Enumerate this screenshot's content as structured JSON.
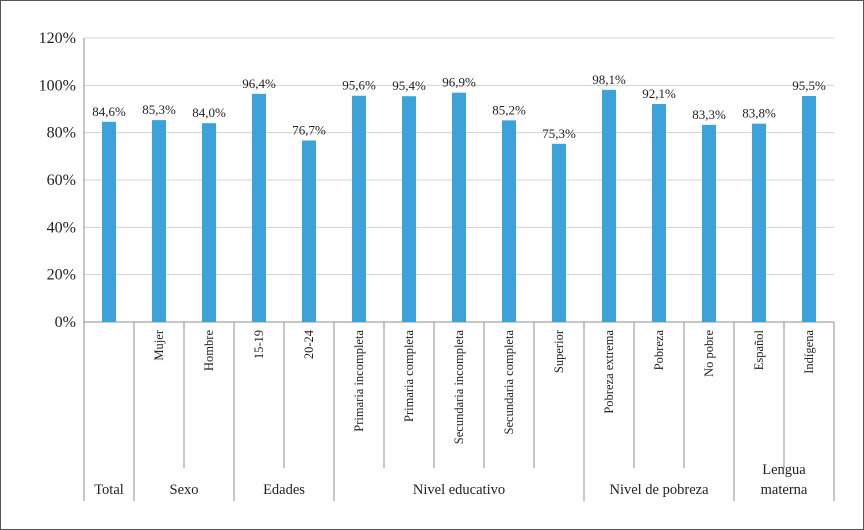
{
  "chart_data": {
    "type": "bar",
    "title": "",
    "xlabel": "",
    "ylabel": "",
    "ylim": [
      0,
      120
    ],
    "yticks": [
      "0%",
      "20%",
      "40%",
      "60%",
      "80%",
      "100%",
      "120%"
    ],
    "grid": true,
    "legend": "none",
    "bar_color": "#3EA2DA",
    "categories": [
      "",
      "Mujer",
      "Hombre",
      "15-19",
      "20-24",
      "Primaria incompleta",
      "Primaria completa",
      "Secundaria incompleta",
      "Secundaria completa",
      "Superior",
      "Pobreza extrema",
      "Pobreza",
      "No pobre",
      "Español",
      "Indígena"
    ],
    "values": [
      84.6,
      85.3,
      84.0,
      96.4,
      76.7,
      95.6,
      95.4,
      96.9,
      85.2,
      75.3,
      98.1,
      92.1,
      83.3,
      83.8,
      95.5
    ],
    "data_labels": [
      "84,6%",
      "85,3%",
      "84,0%",
      "96,4%",
      "76,7%",
      "95,6%",
      "95,4%",
      "96,9%",
      "85,2%",
      "75,3%",
      "98,1%",
      "92,1%",
      "83,3%",
      "83,8%",
      "95,5%"
    ],
    "groups": [
      {
        "label": [
          "Total"
        ],
        "start": 0,
        "count": 1
      },
      {
        "label": [
          "Sexo"
        ],
        "start": 1,
        "count": 2
      },
      {
        "label": [
          "Edades"
        ],
        "start": 3,
        "count": 2
      },
      {
        "label": [
          "Nivel educativo"
        ],
        "start": 5,
        "count": 5
      },
      {
        "label": [
          "Nivel de pobreza"
        ],
        "start": 10,
        "count": 3
      },
      {
        "label": [
          "Lengua",
          "materna"
        ],
        "start": 13,
        "count": 2
      }
    ]
  }
}
